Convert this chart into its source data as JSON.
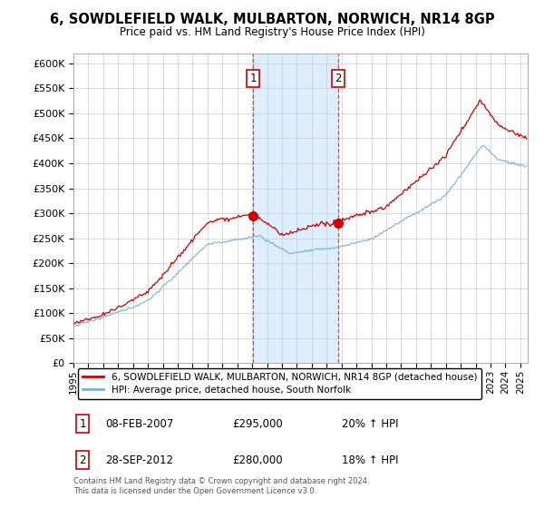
{
  "title": "6, SOWDLEFIELD WALK, MULBARTON, NORWICH, NR14 8GP",
  "subtitle": "Price paid vs. HM Land Registry's House Price Index (HPI)",
  "legend_line1": "6, SOWDLEFIELD WALK, MULBARTON, NORWICH, NR14 8GP (detached house)",
  "legend_line2": "HPI: Average price, detached house, South Norfolk",
  "sale1_label": "1",
  "sale2_label": "2",
  "sale1_date": "08-FEB-2007",
  "sale1_price": "£295,000",
  "sale1_hpi": "20% ↑ HPI",
  "sale2_date": "28-SEP-2012",
  "sale2_price": "£280,000",
  "sale2_hpi": "18% ↑ HPI",
  "footer": "Contains HM Land Registry data © Crown copyright and database right 2024.\nThis data is licensed under the Open Government Licence v3.0.",
  "red_color": "#cc0000",
  "blue_color": "#7bafd4",
  "shade_color": "#ddeeff",
  "sale1_x": 2007.08,
  "sale1_y": 295000,
  "sale2_x": 2012.75,
  "sale2_y": 280000,
  "ylim_top": 620000,
  "yticks": [
    0,
    50000,
    100000,
    150000,
    200000,
    250000,
    300000,
    350000,
    400000,
    450000,
    500000,
    550000,
    600000
  ],
  "ytick_labels": [
    "£0",
    "£50K",
    "£100K",
    "£150K",
    "£200K",
    "£250K",
    "£300K",
    "£350K",
    "£400K",
    "£450K",
    "£500K",
    "£550K",
    "£600K"
  ],
  "x_start": 1995,
  "x_end": 2025.5,
  "xtick_years": [
    1995,
    1996,
    1997,
    1998,
    1999,
    2000,
    2001,
    2002,
    2003,
    2004,
    2005,
    2006,
    2007,
    2008,
    2009,
    2010,
    2011,
    2012,
    2013,
    2014,
    2015,
    2016,
    2017,
    2018,
    2019,
    2020,
    2021,
    2022,
    2023,
    2024,
    2025
  ]
}
